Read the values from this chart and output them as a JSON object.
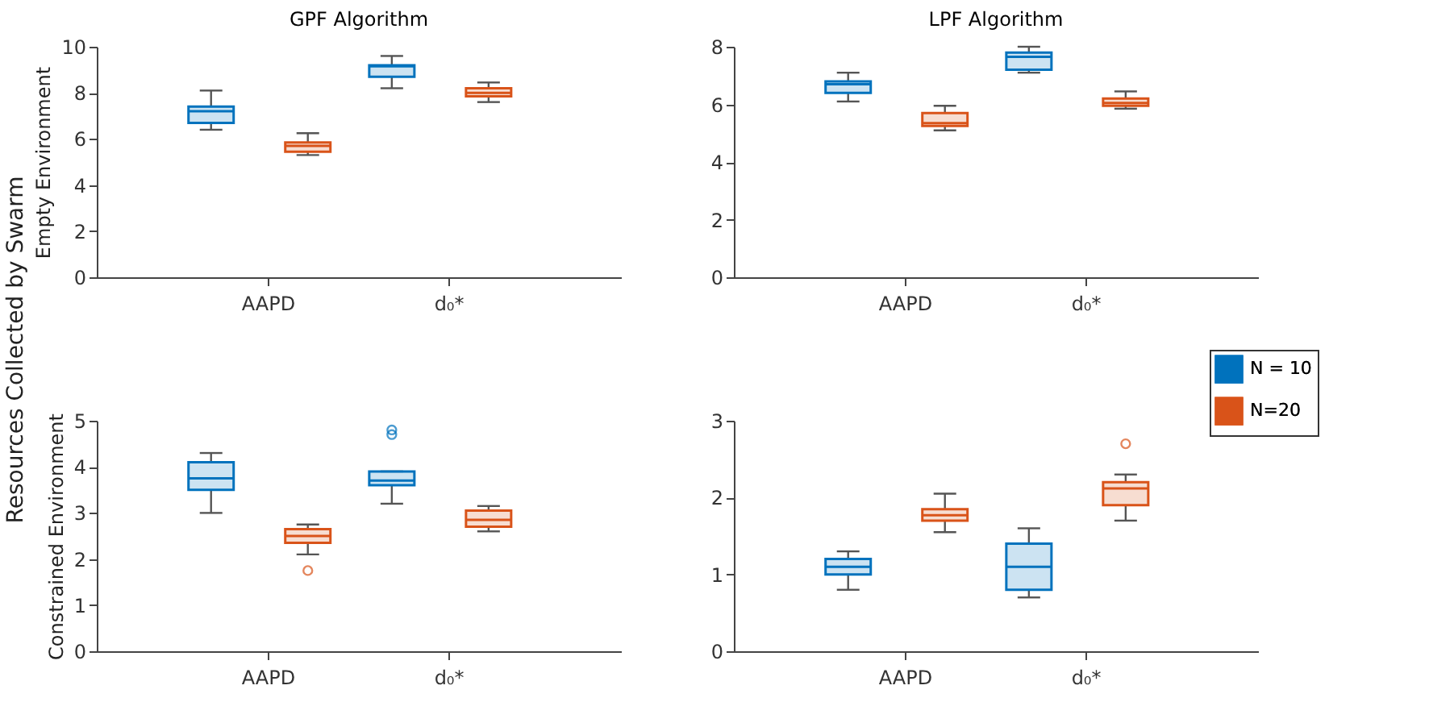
{
  "chart_data": [
    {
      "type": "box",
      "title": "GPF Algorithm",
      "ylabel": "Empty Environment",
      "annotations": [
        "Resources Collected by Swarm"
      ],
      "categories": [
        "AAPD",
        "d₀*"
      ],
      "ylim": [
        0,
        10
      ],
      "yticks": [
        0,
        2,
        4,
        6,
        8,
        10
      ],
      "grid": false,
      "series": [
        {
          "color": "#0072bd",
          "boxes": [
            {
              "low": 6.4,
              "q1": 6.7,
              "median": 7.2,
              "q3": 7.4,
              "high": 8.1
            },
            {
              "low": 8.2,
              "q1": 8.7,
              "median": 9.15,
              "q3": 9.2,
              "high": 9.6
            }
          ]
        },
        {
          "color": "#d95319",
          "boxes": [
            {
              "low": 5.3,
              "q1": 5.45,
              "median": 5.7,
              "q3": 5.85,
              "high": 6.25
            },
            {
              "low": 7.6,
              "q1": 7.85,
              "median": 8.0,
              "q3": 8.2,
              "high": 8.45
            }
          ]
        }
      ]
    },
    {
      "type": "box",
      "title": "LPF Algorithm",
      "categories": [
        "AAPD",
        "d₀*"
      ],
      "ylim": [
        0,
        8
      ],
      "yticks": [
        0,
        2,
        4,
        6,
        8
      ],
      "grid": false,
      "series": [
        {
          "color": "#0072bd",
          "boxes": [
            {
              "low": 6.1,
              "q1": 6.4,
              "median": 6.7,
              "q3": 6.8,
              "high": 7.1
            },
            {
              "low": 7.1,
              "q1": 7.2,
              "median": 7.65,
              "q3": 7.8,
              "high": 8.0
            }
          ]
        },
        {
          "color": "#d95319",
          "boxes": [
            {
              "low": 5.1,
              "q1": 5.25,
              "median": 5.35,
              "q3": 5.7,
              "high": 5.95
            },
            {
              "low": 5.85,
              "q1": 5.95,
              "median": 6.05,
              "q3": 6.2,
              "high": 6.45
            }
          ]
        }
      ]
    },
    {
      "type": "box",
      "ylabel": "Constrained Environment",
      "categories": [
        "AAPD",
        "d₀*"
      ],
      "ylim": [
        0,
        5
      ],
      "yticks": [
        0,
        1,
        2,
        3,
        4,
        5
      ],
      "grid": false,
      "series": [
        {
          "color": "#0072bd",
          "boxes": [
            {
              "low": 3.0,
              "q1": 3.5,
              "median": 3.75,
              "q3": 4.1,
              "high": 4.3
            },
            {
              "low": 3.2,
              "q1": 3.6,
              "median": 3.7,
              "q3": 3.9,
              "high": 3.9,
              "outliers": [
                4.7,
                4.8
              ]
            }
          ]
        },
        {
          "color": "#d95319",
          "boxes": [
            {
              "low": 2.1,
              "q1": 2.35,
              "median": 2.5,
              "q3": 2.65,
              "high": 2.75,
              "outliers": [
                1.75
              ]
            },
            {
              "low": 2.6,
              "q1": 2.7,
              "median": 2.85,
              "q3": 3.05,
              "high": 3.15
            }
          ]
        }
      ]
    },
    {
      "type": "box",
      "categories": [
        "AAPD",
        "d₀*"
      ],
      "ylim": [
        0,
        3
      ],
      "yticks": [
        0,
        1,
        2,
        3
      ],
      "grid": false,
      "legend": "top right",
      "series": [
        {
          "name": "N = 10",
          "color": "#0072bd",
          "boxes": [
            {
              "low": 0.8,
              "q1": 1.0,
              "median": 1.1,
              "q3": 1.2,
              "high": 1.3
            },
            {
              "low": 0.7,
              "q1": 0.8,
              "median": 1.1,
              "q3": 1.4,
              "high": 1.6
            }
          ]
        },
        {
          "name": "N=20",
          "color": "#d95319",
          "boxes": [
            {
              "low": 1.55,
              "q1": 1.7,
              "median": 1.77,
              "q3": 1.85,
              "high": 2.05
            },
            {
              "low": 1.7,
              "q1": 1.9,
              "median": 2.12,
              "q3": 2.2,
              "high": 2.3,
              "outliers": [
                2.7
              ]
            }
          ]
        }
      ]
    }
  ]
}
